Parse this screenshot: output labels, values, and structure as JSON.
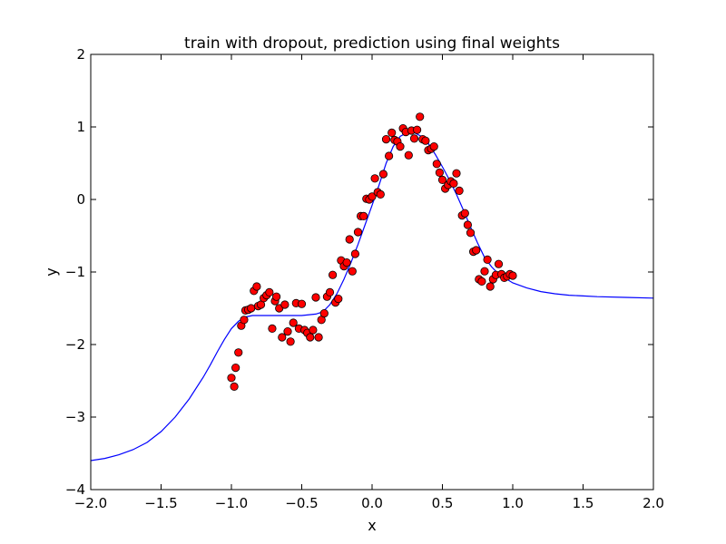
{
  "chart_data": {
    "type": "scatter",
    "title": "train with dropout, prediction using final weights",
    "xlabel": "x",
    "ylabel": "y",
    "xlim": [
      -2.0,
      2.0
    ],
    "ylim": [
      -4,
      2
    ],
    "xticks": [
      -2.0,
      -1.5,
      -1.0,
      -0.5,
      0.0,
      0.5,
      1.0,
      1.5,
      2.0
    ],
    "xtick_labels": [
      "−2.0",
      "−1.5",
      "−1.0",
      "−0.5",
      "0.0",
      "0.5",
      "1.0",
      "1.5",
      "2.0"
    ],
    "yticks": [
      -4,
      -3,
      -2,
      -1,
      0,
      1,
      2
    ],
    "ytick_labels": [
      "−4",
      "−3",
      "−2",
      "−1",
      "0",
      "1",
      "2"
    ],
    "grid": false,
    "colors": {
      "line": "#0000ff",
      "points": "#ff0000",
      "point_edge": "#000000"
    },
    "series": [
      {
        "kind": "line",
        "x": [
          -2.0,
          -1.9,
          -1.8,
          -1.7,
          -1.6,
          -1.5,
          -1.4,
          -1.3,
          -1.2,
          -1.15,
          -1.1,
          -1.05,
          -1.0,
          -0.95,
          -0.9,
          -0.85,
          -0.8,
          -0.7,
          -0.6,
          -0.5,
          -0.4,
          -0.35,
          -0.3,
          -0.25,
          -0.2,
          -0.15,
          -0.1,
          -0.05,
          0.0,
          0.05,
          0.1,
          0.15,
          0.2,
          0.25,
          0.3,
          0.35,
          0.4,
          0.45,
          0.5,
          0.55,
          0.6,
          0.65,
          0.7,
          0.75,
          0.8,
          0.85,
          0.9,
          1.0,
          1.1,
          1.2,
          1.3,
          1.4,
          1.5,
          1.6,
          1.8,
          2.0
        ],
        "y": [
          -3.6,
          -3.57,
          -3.52,
          -3.45,
          -3.35,
          -3.2,
          -3.0,
          -2.75,
          -2.45,
          -2.28,
          -2.1,
          -1.93,
          -1.78,
          -1.68,
          -1.62,
          -1.6,
          -1.6,
          -1.6,
          -1.6,
          -1.6,
          -1.58,
          -1.55,
          -1.45,
          -1.3,
          -1.1,
          -0.87,
          -0.62,
          -0.35,
          -0.08,
          0.2,
          0.5,
          0.73,
          0.87,
          0.92,
          0.92,
          0.87,
          0.77,
          0.62,
          0.45,
          0.27,
          0.07,
          -0.15,
          -0.38,
          -0.6,
          -0.8,
          -0.93,
          -1.03,
          -1.15,
          -1.22,
          -1.27,
          -1.3,
          -1.32,
          -1.33,
          -1.34,
          -1.35,
          -1.36
        ]
      },
      {
        "kind": "scatter",
        "x": [
          -1.0,
          -0.98,
          -0.97,
          -0.95,
          -0.93,
          -0.91,
          -0.9,
          -0.88,
          -0.86,
          -0.84,
          -0.82,
          -0.81,
          -0.79,
          -0.77,
          -0.75,
          -0.73,
          -0.71,
          -0.69,
          -0.68,
          -0.66,
          -0.64,
          -0.62,
          -0.6,
          -0.58,
          -0.56,
          -0.54,
          -0.52,
          -0.5,
          -0.48,
          -0.46,
          -0.44,
          -0.42,
          -0.4,
          -0.38,
          -0.36,
          -0.34,
          -0.32,
          -0.3,
          -0.28,
          -0.26,
          -0.24,
          -0.22,
          -0.2,
          -0.18,
          -0.16,
          -0.14,
          -0.12,
          -0.1,
          -0.08,
          -0.06,
          -0.04,
          -0.02,
          0.0,
          0.02,
          0.04,
          0.06,
          0.08,
          0.1,
          0.12,
          0.14,
          0.16,
          0.18,
          0.2,
          0.22,
          0.24,
          0.26,
          0.28,
          0.3,
          0.32,
          0.34,
          0.36,
          0.38,
          0.4,
          0.42,
          0.44,
          0.46,
          0.48,
          0.5,
          0.52,
          0.54,
          0.56,
          0.58,
          0.6,
          0.62,
          0.64,
          0.66,
          0.68,
          0.7,
          0.72,
          0.74,
          0.76,
          0.78,
          0.8,
          0.82,
          0.84,
          0.86,
          0.88,
          0.9,
          0.92,
          0.94,
          0.96,
          0.98,
          1.0
        ],
        "y": [
          -2.46,
          -2.58,
          -2.32,
          -2.11,
          -1.74,
          -1.66,
          -1.53,
          -1.52,
          -1.5,
          -1.26,
          -1.2,
          -1.47,
          -1.45,
          -1.36,
          -1.32,
          -1.28,
          -1.78,
          -1.4,
          -1.34,
          -1.5,
          -1.9,
          -1.45,
          -1.82,
          -1.96,
          -1.7,
          -1.43,
          -1.78,
          -1.44,
          -1.8,
          -1.84,
          -1.9,
          -1.8,
          -1.35,
          -1.9,
          -1.66,
          -1.57,
          -1.34,
          -1.28,
          -1.04,
          -1.42,
          -1.37,
          -0.84,
          -0.92,
          -0.87,
          -0.55,
          -0.99,
          -0.75,
          -0.45,
          -0.23,
          -0.23,
          0.01,
          0.0,
          0.04,
          0.29,
          0.1,
          0.07,
          0.35,
          0.83,
          0.6,
          0.92,
          0.82,
          0.8,
          0.73,
          0.98,
          0.93,
          0.61,
          0.95,
          0.84,
          0.96,
          1.14,
          0.83,
          0.81,
          0.68,
          0.7,
          0.73,
          0.49,
          0.37,
          0.27,
          0.15,
          0.2,
          0.25,
          0.22,
          0.36,
          0.12,
          -0.22,
          -0.19,
          -0.35,
          -0.46,
          -0.72,
          -0.7,
          -1.1,
          -1.13,
          -0.99,
          -0.83,
          -1.2,
          -1.1,
          -1.04,
          -0.89,
          -1.03,
          -1.08,
          -1.06,
          -1.03,
          -1.05
        ]
      }
    ]
  }
}
